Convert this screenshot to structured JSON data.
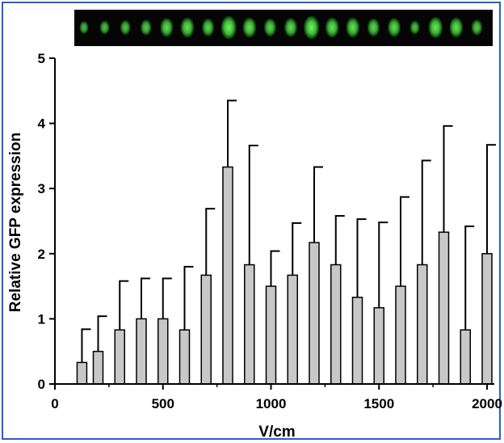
{
  "chart_data": {
    "type": "bar",
    "title": "",
    "xlabel": "V/cm",
    "ylabel": "Relative GFP expression",
    "xlim": [
      0,
      2000
    ],
    "ylim": [
      0,
      5
    ],
    "xticks": [
      0,
      500,
      1000,
      1500,
      2000
    ],
    "yticks": [
      0,
      1,
      2,
      3,
      4,
      5
    ],
    "grid": false,
    "legend": "none",
    "error_bars": "upper",
    "bar_color": "#c8c8c8",
    "x": [
      125,
      200,
      300,
      400,
      500,
      600,
      700,
      800,
      900,
      1000,
      1100,
      1200,
      1300,
      1400,
      1500,
      1600,
      1700,
      1800,
      1900,
      2000
    ],
    "values": [
      0.33,
      0.5,
      0.83,
      1.0,
      1.0,
      0.83,
      1.67,
      3.33,
      1.83,
      1.5,
      1.67,
      2.17,
      1.83,
      1.33,
      1.17,
      1.5,
      1.83,
      2.33,
      0.83,
      2.0
    ],
    "error_upper": [
      0.84,
      1.04,
      1.58,
      1.62,
      1.62,
      1.8,
      2.69,
      4.35,
      3.66,
      2.04,
      2.47,
      3.33,
      2.58,
      2.53,
      2.48,
      2.87,
      3.43,
      3.96,
      2.42,
      3.67
    ]
  },
  "image_strip": {
    "background": "#050505",
    "glow_color": "#3ec43a",
    "count": 20
  }
}
